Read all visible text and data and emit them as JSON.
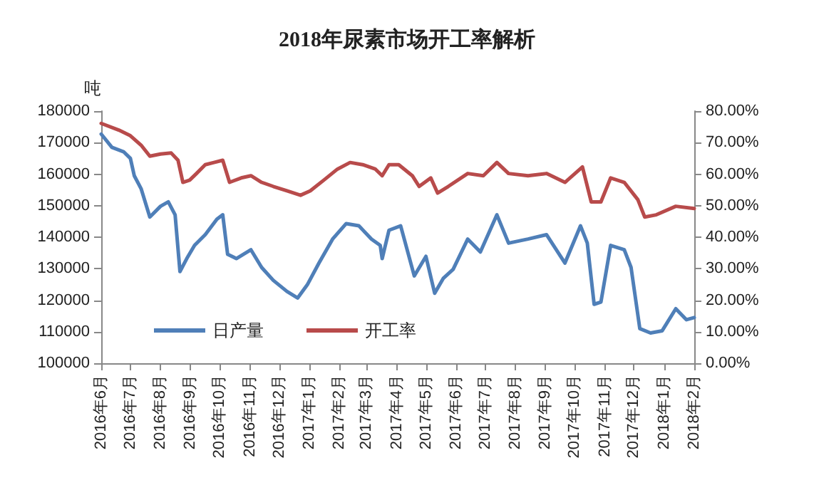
{
  "chart_data": {
    "type": "line",
    "title": "2018年尿素市场开工率解析",
    "ylabel": "吨",
    "xlim": [
      "2016-06-01",
      "2018-02-01"
    ],
    "xticks": [
      {
        "value": "2016-06-01",
        "label": "2016年6月"
      },
      {
        "value": "2016-07-01",
        "label": "2016年7月"
      },
      {
        "value": "2016-08-01",
        "label": "2016年8月"
      },
      {
        "value": "2016-09-01",
        "label": "2016年9月"
      },
      {
        "value": "2016-10-01",
        "label": "2016年10月"
      },
      {
        "value": "2016-11-01",
        "label": "2016年11月"
      },
      {
        "value": "2016-12-01",
        "label": "2016年12月"
      },
      {
        "value": "2017-01-01",
        "label": "2017年1月"
      },
      {
        "value": "2017-02-01",
        "label": "2017年2月"
      },
      {
        "value": "2017-03-01",
        "label": "2017年3月"
      },
      {
        "value": "2017-04-01",
        "label": "2017年4月"
      },
      {
        "value": "2017-05-01",
        "label": "2017年5月"
      },
      {
        "value": "2017-06-01",
        "label": "2017年6月"
      },
      {
        "value": "2017-07-01",
        "label": "2017年7月"
      },
      {
        "value": "2017-08-01",
        "label": "2017年8月"
      },
      {
        "value": "2017-09-01",
        "label": "2017年9月"
      },
      {
        "value": "2017-10-01",
        "label": "2017年10月"
      },
      {
        "value": "2017-11-01",
        "label": "2017年11月"
      },
      {
        "value": "2017-12-01",
        "label": "2017年12月"
      },
      {
        "value": "2018-01-01",
        "label": "2018年1月"
      },
      {
        "value": "2018-02-01",
        "label": "2018年2月"
      }
    ],
    "ylim": [
      100000,
      180000
    ],
    "yticks": [
      100000,
      110000,
      120000,
      130000,
      140000,
      150000,
      160000,
      170000,
      180000
    ],
    "y2lim": [
      0,
      80
    ],
    "y2ticks": [
      {
        "value": 0,
        "label": "0.00%"
      },
      {
        "value": 10,
        "label": "10.00%"
      },
      {
        "value": 20,
        "label": "20.00%"
      },
      {
        "value": 30,
        "label": "30.00%"
      },
      {
        "value": 40,
        "label": "40.00%"
      },
      {
        "value": 50,
        "label": "50.00%"
      },
      {
        "value": 60,
        "label": "60.00%"
      },
      {
        "value": 70,
        "label": "70.00%"
      },
      {
        "value": 80,
        "label": "80.00%"
      }
    ],
    "grid": false,
    "legend": "bottom left",
    "marker": "none",
    "line_style": "solid",
    "series": [
      {
        "name": "日产量",
        "color": "#4f7fb8",
        "axis": "y",
        "x": [
          "2016-06-01",
          "2016-06-12",
          "2016-06-24",
          "2016-07-01",
          "2016-07-05",
          "2016-07-12",
          "2016-07-21",
          "2016-08-01",
          "2016-08-09",
          "2016-08-16",
          "2016-08-21",
          "2016-08-28",
          "2016-09-05",
          "2016-09-16",
          "2016-09-28",
          "2016-10-04",
          "2016-10-09",
          "2016-10-18",
          "2016-11-02",
          "2016-11-13",
          "2016-11-25",
          "2016-12-09",
          "2016-12-20",
          "2016-12-30",
          "2017-01-11",
          "2017-01-25",
          "2017-02-08",
          "2017-02-21",
          "2017-03-06",
          "2017-03-15",
          "2017-03-17",
          "2017-03-24",
          "2017-04-05",
          "2017-04-19",
          "2017-05-01",
          "2017-05-10",
          "2017-05-19",
          "2017-05-29",
          "2017-06-13",
          "2017-06-26",
          "2017-07-13",
          "2017-07-25",
          "2017-08-14",
          "2017-09-02",
          "2017-09-21",
          "2017-10-07",
          "2017-10-14",
          "2017-10-21",
          "2017-10-28",
          "2017-11-07",
          "2017-11-21",
          "2017-11-28",
          "2017-12-07",
          "2017-12-18",
          "2017-12-30",
          "2018-01-13",
          "2018-01-24",
          "2018-02-01"
        ],
        "values": [
          172700,
          168500,
          167100,
          165000,
          159500,
          155400,
          146400,
          149800,
          151200,
          147100,
          129100,
          133200,
          137400,
          140800,
          145700,
          147100,
          134600,
          133200,
          136000,
          130400,
          126300,
          122800,
          120700,
          124900,
          131800,
          139400,
          144300,
          143600,
          139400,
          137400,
          133200,
          142200,
          143600,
          127700,
          133900,
          122200,
          127000,
          129800,
          139400,
          135300,
          147100,
          138100,
          139400,
          140800,
          131800,
          143600,
          138100,
          118700,
          119400,
          137400,
          136000,
          130400,
          111000,
          109600,
          110300,
          117300,
          113800,
          114500
        ]
      },
      {
        "name": "开工率",
        "color": "#b84b4b",
        "axis": "y2",
        "x": [
          "2016-06-01",
          "2016-06-19",
          "2016-07-01",
          "2016-07-12",
          "2016-07-21",
          "2016-08-01",
          "2016-08-12",
          "2016-08-19",
          "2016-08-24",
          "2016-08-31",
          "2016-09-07",
          "2016-09-16",
          "2016-09-25",
          "2016-10-04",
          "2016-10-11",
          "2016-10-23",
          "2016-11-02",
          "2016-11-13",
          "2016-11-25",
          "2016-12-09",
          "2016-12-23",
          "2017-01-02",
          "2017-01-16",
          "2017-01-30",
          "2017-02-12",
          "2017-02-25",
          "2017-03-10",
          "2017-03-17",
          "2017-03-24",
          "2017-04-03",
          "2017-04-17",
          "2017-04-24",
          "2017-05-06",
          "2017-05-13",
          "2017-05-24",
          "2017-06-13",
          "2017-06-29",
          "2017-07-13",
          "2017-07-25",
          "2017-08-14",
          "2017-09-02",
          "2017-09-21",
          "2017-10-09",
          "2017-10-18",
          "2017-10-28",
          "2017-11-07",
          "2017-11-21",
          "2017-12-05",
          "2017-12-12",
          "2017-12-24",
          "2018-01-13",
          "2018-02-01"
        ],
        "values": [
          76.1,
          74.0,
          72.2,
          69.2,
          65.7,
          66.4,
          66.7,
          64.4,
          57.4,
          58.1,
          60.2,
          63.0,
          63.7,
          64.4,
          57.4,
          58.8,
          59.5,
          57.4,
          56.1,
          54.7,
          53.3,
          54.7,
          58.1,
          61.6,
          63.7,
          63.0,
          61.6,
          59.5,
          63.0,
          63.0,
          59.5,
          56.1,
          58.8,
          54.0,
          56.1,
          60.2,
          59.5,
          63.7,
          60.2,
          59.5,
          60.2,
          57.4,
          62.3,
          51.2,
          51.2,
          58.8,
          57.4,
          51.9,
          46.4,
          47.1,
          49.8,
          49.1
        ]
      }
    ]
  }
}
